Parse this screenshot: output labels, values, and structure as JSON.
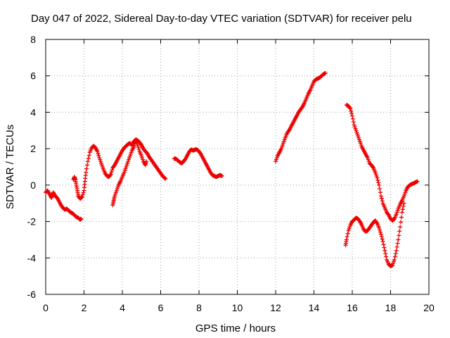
{
  "chart_data": {
    "type": "scatter",
    "title": "Day 047 of 2022, Sidereal Day-to-day VTEC variation (SDTVAR) for receiver pelu",
    "xlabel": "GPS time / hours",
    "ylabel": "SDTVAR / TECUs",
    "xlim": [
      0,
      20
    ],
    "ylim": [
      -6,
      8
    ],
    "xticks": [
      0,
      2,
      4,
      6,
      8,
      10,
      12,
      14,
      16,
      18,
      20
    ],
    "yticks": [
      -6,
      -4,
      -2,
      0,
      2,
      4,
      6,
      8
    ],
    "grid": true,
    "marker": "+",
    "color": "#ee0000",
    "series": [
      {
        "name": "seg1",
        "x": [
          0.0,
          0.1,
          0.2,
          0.3,
          0.35,
          0.4,
          0.5,
          0.6,
          0.7,
          0.8,
          0.9,
          1.0,
          1.1,
          1.2,
          1.3,
          1.4,
          1.5,
          1.6,
          1.7,
          1.8,
          1.85
        ],
        "y": [
          -0.4,
          -0.3,
          -0.5,
          -0.7,
          -0.55,
          -0.4,
          -0.6,
          -0.7,
          -0.9,
          -1.1,
          -1.25,
          -1.35,
          -1.3,
          -1.4,
          -1.5,
          -1.55,
          -1.65,
          -1.75,
          -1.8,
          -1.9,
          -1.85
        ]
      },
      {
        "name": "seg2",
        "x": [
          1.45,
          1.5,
          1.55,
          1.6,
          1.65,
          1.7,
          1.8,
          1.9,
          2.0,
          2.05,
          2.1,
          2.2,
          2.3,
          2.4,
          2.5,
          2.6,
          2.7,
          2.8,
          2.9,
          3.0,
          3.1,
          3.2,
          3.3,
          3.4,
          3.5,
          3.6,
          3.7,
          3.8,
          3.9,
          4.0,
          4.1,
          4.2,
          4.3,
          4.4,
          4.5,
          4.6,
          4.7,
          4.8,
          4.9,
          5.0,
          5.1,
          5.2,
          5.3,
          5.4,
          5.5,
          5.6,
          5.7,
          5.8,
          5.9,
          6.0,
          6.1,
          6.2,
          6.25
        ],
        "y": [
          0.3,
          0.45,
          0.3,
          0.0,
          -0.3,
          -0.6,
          -0.75,
          -0.65,
          -0.3,
          0.2,
          0.7,
          1.3,
          1.8,
          2.05,
          2.15,
          2.05,
          1.85,
          1.5,
          1.2,
          0.9,
          0.65,
          0.5,
          0.45,
          0.6,
          0.95,
          1.1,
          1.3,
          1.5,
          1.7,
          1.9,
          2.05,
          2.15,
          2.25,
          2.3,
          2.2,
          2.4,
          2.5,
          2.45,
          2.35,
          2.2,
          2.0,
          1.85,
          1.75,
          1.55,
          1.4,
          1.25,
          1.1,
          0.95,
          0.8,
          0.65,
          0.5,
          0.4,
          0.35
        ]
      },
      {
        "name": "seg3",
        "x": [
          3.5,
          3.55,
          3.6,
          3.7,
          3.8,
          3.9,
          4.0,
          4.1,
          4.2,
          4.3,
          4.4,
          4.5,
          4.6,
          4.65,
          4.7,
          4.8,
          4.9,
          5.0,
          5.1,
          5.2,
          5.25
        ],
        "y": [
          -1.1,
          -0.85,
          -0.6,
          -0.3,
          0.0,
          0.2,
          0.45,
          0.7,
          1.0,
          1.3,
          1.6,
          1.9,
          2.1,
          2.35,
          2.5,
          2.2,
          1.85,
          1.6,
          1.3,
          1.1,
          1.3
        ]
      },
      {
        "name": "seg4",
        "x": [
          6.7,
          6.8,
          6.9,
          7.0,
          7.1,
          7.2,
          7.3,
          7.4,
          7.5,
          7.6,
          7.7,
          7.8,
          7.9,
          8.0,
          8.1,
          8.2,
          8.3,
          8.4,
          8.5,
          8.6,
          8.7,
          8.8,
          8.9,
          9.0,
          9.1,
          9.2
        ],
        "y": [
          1.45,
          1.45,
          1.35,
          1.25,
          1.2,
          1.3,
          1.45,
          1.65,
          1.85,
          1.95,
          1.9,
          1.95,
          1.95,
          1.85,
          1.7,
          1.5,
          1.3,
          1.1,
          0.9,
          0.7,
          0.55,
          0.5,
          0.45,
          0.5,
          0.55,
          0.5
        ]
      },
      {
        "name": "seg5",
        "x": [
          12.0,
          12.1,
          12.2,
          12.3,
          12.4,
          12.5,
          12.6,
          12.7,
          12.8,
          12.9,
          13.0,
          13.1,
          13.2,
          13.3,
          13.4,
          13.5,
          13.6,
          13.7,
          13.8,
          13.9,
          14.0,
          14.1,
          14.2,
          14.3,
          14.4,
          14.5,
          14.6
        ],
        "y": [
          1.3,
          1.6,
          1.8,
          2.0,
          2.3,
          2.6,
          2.85,
          3.0,
          3.2,
          3.4,
          3.6,
          3.8,
          4.0,
          4.15,
          4.3,
          4.5,
          4.75,
          5.0,
          5.2,
          5.45,
          5.7,
          5.8,
          5.85,
          5.9,
          6.0,
          6.1,
          6.15
        ]
      },
      {
        "name": "seg6",
        "x": [
          15.7,
          15.8,
          15.9,
          16.0,
          16.1,
          16.2,
          16.3,
          16.4,
          16.5,
          16.6,
          16.7,
          16.8,
          16.9,
          17.0,
          17.1,
          17.2,
          17.3,
          17.4,
          17.5,
          17.6,
          17.7,
          17.8,
          17.9,
          18.0,
          18.1,
          18.2,
          18.3,
          18.4,
          18.5,
          18.6,
          18.7,
          18.8,
          18.9,
          19.0,
          19.1,
          19.2,
          19.3,
          19.4
        ],
        "y": [
          4.4,
          4.35,
          4.2,
          3.8,
          3.3,
          3.0,
          2.7,
          2.4,
          2.1,
          1.9,
          1.7,
          1.5,
          1.2,
          1.1,
          0.95,
          0.7,
          0.4,
          0.0,
          -0.6,
          -1.0,
          -1.25,
          -1.5,
          -1.65,
          -1.85,
          -1.95,
          -1.85,
          -1.6,
          -1.3,
          -1.05,
          -0.85,
          -0.6,
          -0.3,
          -0.1,
          0.0,
          0.05,
          0.1,
          0.15,
          0.2
        ]
      },
      {
        "name": "seg7",
        "x": [
          15.65,
          15.7,
          15.8,
          15.9,
          16.0,
          16.1,
          16.2,
          16.3,
          16.4,
          16.5,
          16.6,
          16.7,
          16.8,
          16.9,
          17.0,
          17.1,
          17.2,
          17.3,
          17.4,
          17.5,
          17.6,
          17.7,
          17.8,
          17.9,
          18.0,
          18.1,
          18.2,
          18.3,
          18.4,
          18.5,
          18.6,
          18.7
        ],
        "y": [
          -3.3,
          -3.0,
          -2.5,
          -2.2,
          -2.0,
          -1.9,
          -1.8,
          -1.85,
          -2.0,
          -2.2,
          -2.45,
          -2.55,
          -2.5,
          -2.35,
          -2.2,
          -2.05,
          -1.95,
          -2.1,
          -2.35,
          -2.7,
          -3.1,
          -3.6,
          -4.1,
          -4.35,
          -4.45,
          -4.4,
          -4.1,
          -3.6,
          -3.0,
          -2.3,
          -1.5,
          -1.0
        ]
      }
    ]
  }
}
